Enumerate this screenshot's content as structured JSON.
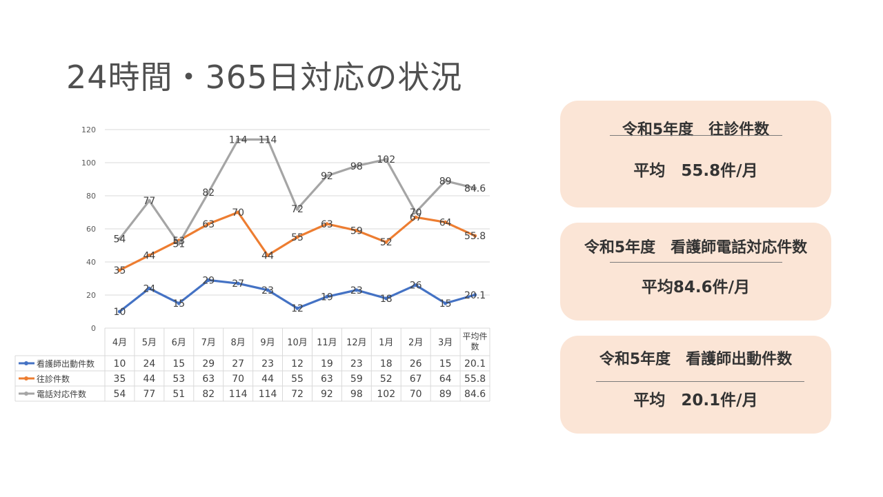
{
  "title": "24時間・365日対応の状況",
  "cards": [
    {
      "title": "令和5年度　往診件数",
      "value": "平均　55.8件/月"
    },
    {
      "title": "令和5年度　看護師電話対応件数",
      "value": "平均84.6件/月"
    },
    {
      "title": "令和5年度　看護師出動件数",
      "value": "平均　20.1件/月"
    }
  ],
  "chart_data": {
    "type": "line",
    "categories": [
      "4月",
      "5月",
      "6月",
      "7月",
      "8月",
      "9月",
      "10月",
      "11月",
      "12月",
      "1月",
      "2月",
      "3月",
      "平均件数"
    ],
    "ylim": [
      0,
      120
    ],
    "yticks": [
      0,
      20,
      40,
      60,
      80,
      100,
      120
    ],
    "grid": true,
    "legend": "bottom-table",
    "series": [
      {
        "name": "看護師出動件数",
        "color": "#4472c4",
        "values": [
          10,
          24,
          15,
          29,
          27,
          23,
          12,
          19,
          23,
          18,
          26,
          15,
          20.1
        ]
      },
      {
        "name": "往診件数",
        "color": "#ed7d31",
        "values": [
          35,
          44,
          53,
          63,
          70,
          44,
          55,
          63,
          59,
          52,
          67,
          64,
          55.8
        ]
      },
      {
        "name": "電話対応件数",
        "color": "#a5a5a5",
        "values": [
          54,
          77,
          51,
          82,
          114,
          114,
          72,
          92,
          98,
          102,
          70,
          89,
          84.6
        ]
      }
    ]
  }
}
